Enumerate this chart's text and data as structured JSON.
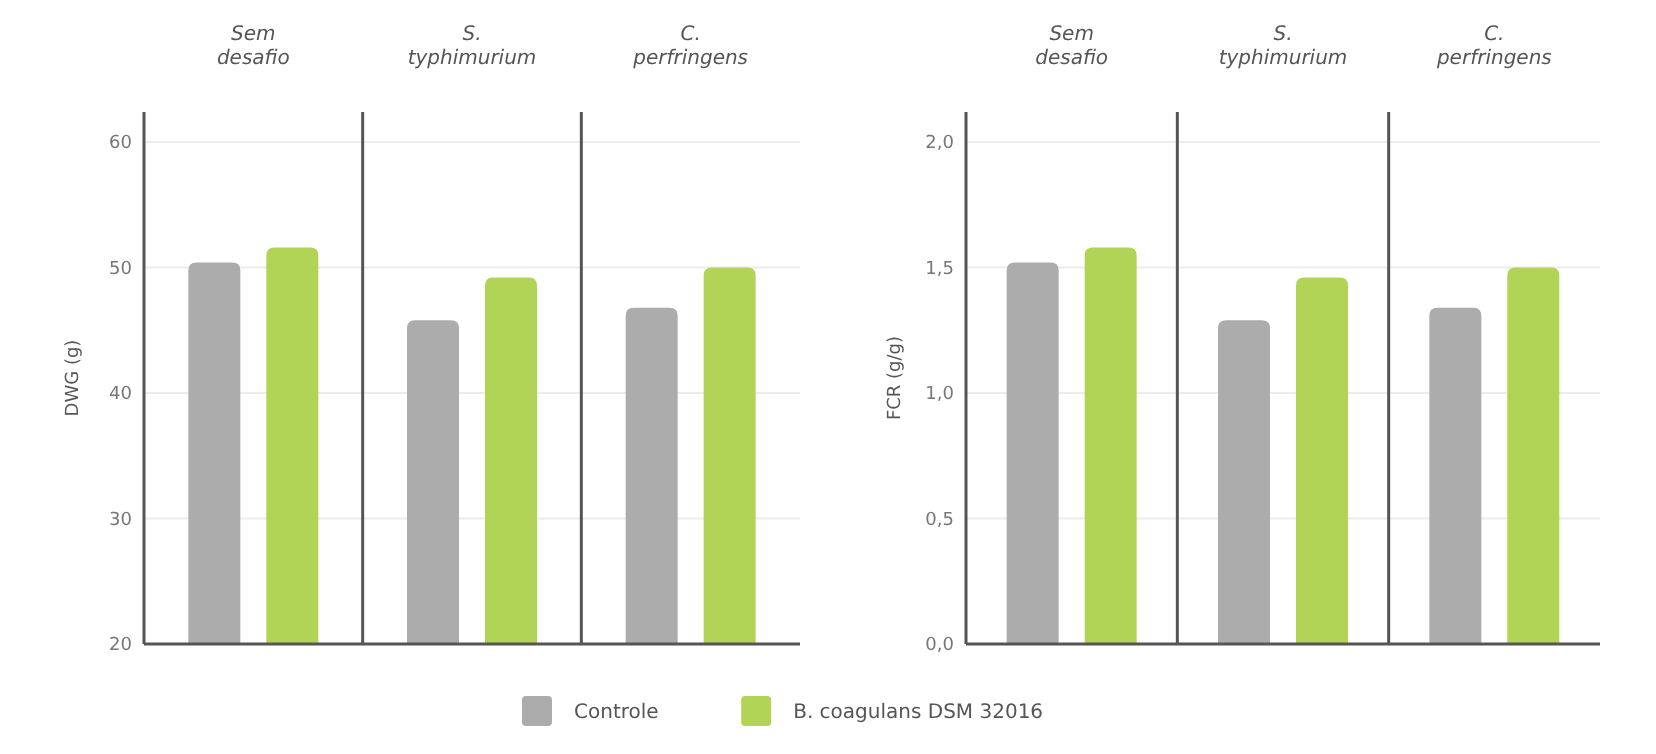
{
  "chart_data": [
    {
      "type": "bar",
      "ylabel": "DWG (g)",
      "categories": [
        "Sem desafio",
        "S. typhimurium",
        "C. perfringens"
      ],
      "ylim": [
        20,
        62.4
      ],
      "yticks": [
        20,
        30,
        40,
        50,
        60
      ],
      "grid": "y",
      "legend": "bottom",
      "series": [
        {
          "name": "Controle",
          "color": "#acacac",
          "values": [
            50.4,
            45.8,
            46.8
          ]
        },
        {
          "name": "B. coagulans DSM 32016",
          "color": "#b1d356",
          "values": [
            51.6,
            49.2,
            50.0
          ]
        }
      ]
    },
    {
      "type": "bar",
      "ylabel": "FCR (g/g)",
      "categories": [
        "Sem desafio",
        "S. typhimurium",
        "C. perfringens"
      ],
      "ylim": [
        0,
        2.12
      ],
      "yticks": [
        {
          "value": 0,
          "label": "0,0"
        },
        {
          "value": 0.5,
          "label": "0,5"
        },
        {
          "value": 1,
          "label": "1,0"
        },
        {
          "value": 1.5,
          "label": "1,5"
        },
        {
          "value": 2,
          "label": "2,0"
        }
      ],
      "grid": "y",
      "series": [
        {
          "color": "#acacac",
          "values": [
            1.52,
            1.29,
            1.34
          ]
        },
        {
          "color": "#b1d356",
          "values": [
            1.58,
            1.46,
            1.5
          ]
        }
      ]
    }
  ]
}
